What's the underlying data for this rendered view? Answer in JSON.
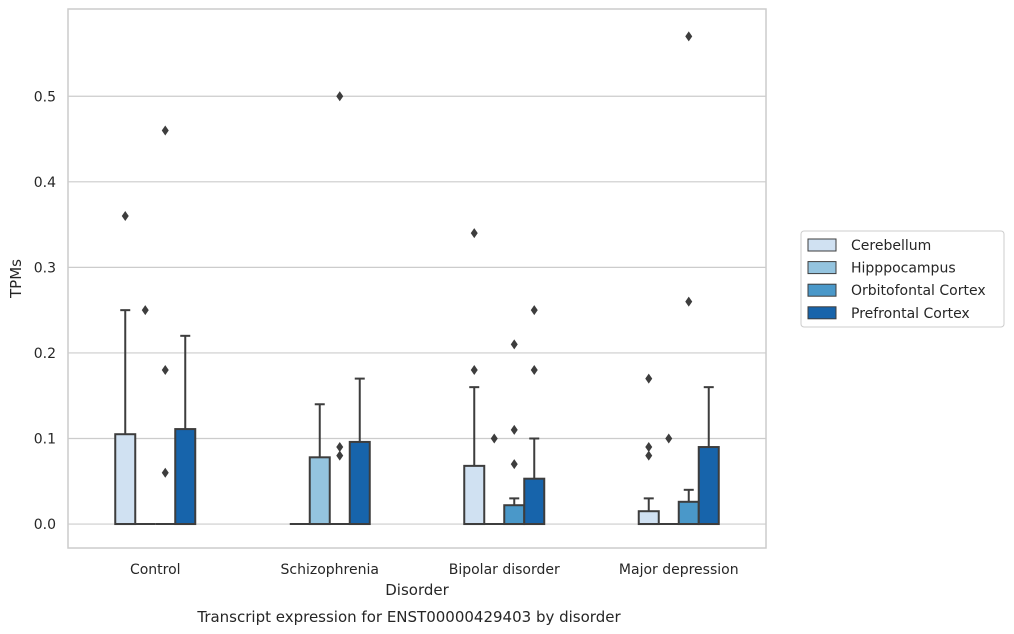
{
  "chart_data": {
    "type": "box",
    "title": "Transcript expression for ENST00000429403 by disorder",
    "xlabel": "Disorder",
    "ylabel": "TPMs",
    "ylim": [
      -0.028,
      0.602
    ],
    "yticks": [
      "0.0",
      "0.1",
      "0.2",
      "0.3",
      "0.4",
      "0.5"
    ],
    "grid": "horizontal",
    "legend_position": "right",
    "categories": [
      "Control",
      "Schizophrenia",
      "Bipolar disorder",
      "Major depression"
    ],
    "series": [
      {
        "name": "Cerebellum",
        "color": "#d0e1f2",
        "boxes": [
          {
            "q1": 0.0,
            "median": 0.0,
            "q3": 0.105,
            "whisker_low": 0.0,
            "whisker_high": 0.25,
            "outliers": [
              0.36
            ]
          },
          {
            "q1": 0.0,
            "median": 0.0,
            "q3": 0.0,
            "whisker_low": 0.0,
            "whisker_high": 0.0,
            "outliers": []
          },
          {
            "q1": 0.0,
            "median": 0.0,
            "q3": 0.068,
            "whisker_low": 0.0,
            "whisker_high": 0.16,
            "outliers": [
              0.18,
              0.34
            ]
          },
          {
            "q1": 0.0,
            "median": 0.0,
            "q3": 0.015,
            "whisker_low": 0.0,
            "whisker_high": 0.03,
            "outliers": [
              0.08,
              0.09,
              0.17
            ]
          }
        ]
      },
      {
        "name": "Hipppocampus",
        "color": "#94c4df",
        "boxes": [
          {
            "q1": 0.0,
            "median": 0.0,
            "q3": 0.0,
            "whisker_low": 0.0,
            "whisker_high": 0.0,
            "outliers": [
              0.25
            ]
          },
          {
            "q1": 0.0,
            "median": 0.0,
            "q3": 0.078,
            "whisker_low": 0.0,
            "whisker_high": 0.14,
            "outliers": []
          },
          {
            "q1": 0.0,
            "median": 0.0,
            "q3": 0.0,
            "whisker_low": 0.0,
            "whisker_high": 0.0,
            "outliers": [
              0.1
            ]
          },
          {
            "q1": 0.0,
            "median": 0.0,
            "q3": 0.0,
            "whisker_low": 0.0,
            "whisker_high": 0.0,
            "outliers": [
              0.1
            ]
          }
        ]
      },
      {
        "name": "Orbitofontal Cortex",
        "color": "#4a98c9",
        "boxes": [
          {
            "q1": 0.0,
            "median": 0.0,
            "q3": 0.0,
            "whisker_low": 0.0,
            "whisker_high": 0.0,
            "outliers": [
              0.06,
              0.18,
              0.46
            ]
          },
          {
            "q1": 0.0,
            "median": 0.0,
            "q3": 0.0,
            "whisker_low": 0.0,
            "whisker_high": 0.0,
            "outliers": [
              0.08,
              0.09,
              0.5
            ]
          },
          {
            "q1": 0.0,
            "median": 0.0,
            "q3": 0.022,
            "whisker_low": 0.0,
            "whisker_high": 0.03,
            "outliers": [
              0.07,
              0.11,
              0.21
            ]
          },
          {
            "q1": 0.0,
            "median": 0.0,
            "q3": 0.026,
            "whisker_low": 0.0,
            "whisker_high": 0.04,
            "outliers": [
              0.26,
              0.57
            ]
          }
        ]
      },
      {
        "name": "Prefrontal Cortex",
        "color": "#1764ab",
        "boxes": [
          {
            "q1": 0.0,
            "median": 0.0,
            "q3": 0.111,
            "whisker_low": 0.0,
            "whisker_high": 0.22,
            "outliers": []
          },
          {
            "q1": 0.0,
            "median": 0.0,
            "q3": 0.096,
            "whisker_low": 0.0,
            "whisker_high": 0.17,
            "outliers": []
          },
          {
            "q1": 0.0,
            "median": 0.0,
            "q3": 0.053,
            "whisker_low": 0.0,
            "whisker_high": 0.1,
            "outliers": [
              0.18,
              0.25
            ]
          },
          {
            "q1": 0.0,
            "median": 0.0,
            "q3": 0.09,
            "whisker_low": 0.0,
            "whisker_high": 0.16,
            "outliers": []
          }
        ]
      }
    ]
  }
}
